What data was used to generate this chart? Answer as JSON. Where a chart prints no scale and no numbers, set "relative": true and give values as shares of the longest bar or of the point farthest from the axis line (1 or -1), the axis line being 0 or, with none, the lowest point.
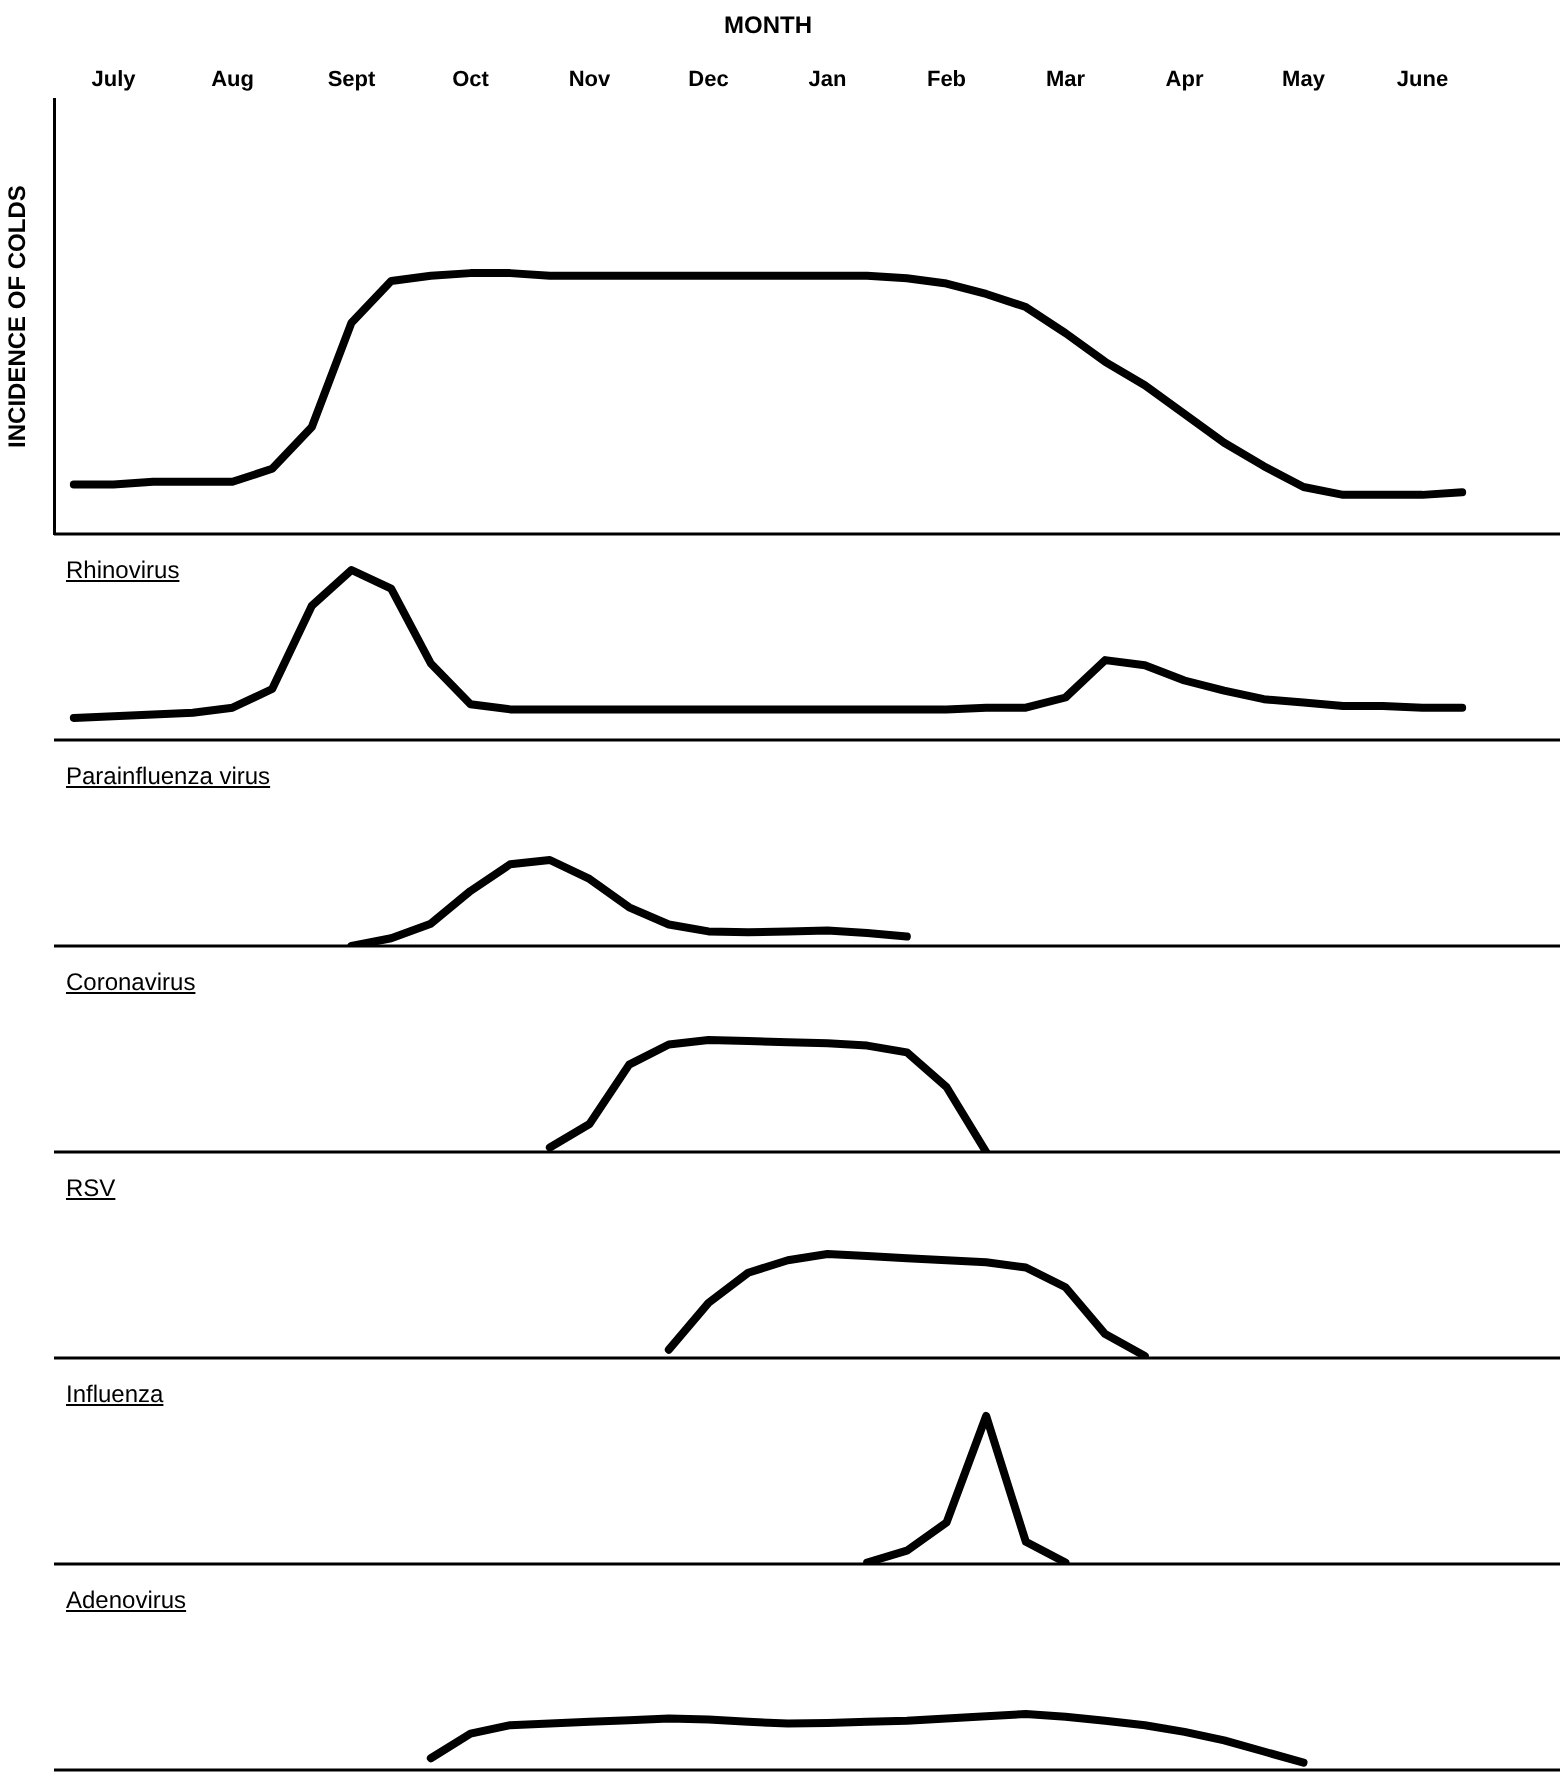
{
  "chart_data": [
    {
      "type": "line",
      "xlabel": "MONTH",
      "ylabel": "INCIDENCE OF COLDS",
      "relative": true,
      "tick_labels": "x",
      "categories": [
        null,
        "July",
        null,
        null,
        "Aug",
        null,
        null,
        "Sept",
        null,
        null,
        "Oct",
        null,
        null,
        "Nov",
        null,
        null,
        "Dec",
        null,
        null,
        "Jan",
        null,
        null,
        "Feb",
        null,
        null,
        "Mar",
        null,
        null,
        "Apr",
        null,
        null,
        "May",
        null,
        null,
        "June",
        null
      ],
      "series": [
        {
          "color": "#000000",
          "values": [
            0.19,
            0.19,
            0.2,
            0.2,
            0.2,
            0.25,
            0.41,
            0.81,
            0.97,
            0.99,
            1,
            1,
            0.99,
            0.99,
            0.99,
            0.99,
            0.99,
            0.99,
            0.99,
            0.99,
            0.99,
            0.98,
            0.96,
            0.92,
            0.87,
            0.77,
            0.66,
            0.57,
            0.46,
            0.35,
            0.26,
            0.18,
            0.15,
            0.15,
            0.15,
            0.16
          ]
        }
      ]
    },
    {
      "type": "line",
      "title": "Rhinovirus",
      "relative": true,
      "tick_labels": false,
      "categories": [
        null,
        null,
        null,
        null,
        null,
        null,
        null,
        null,
        null,
        null,
        null,
        null,
        null,
        null,
        null,
        null,
        null,
        null,
        null,
        null,
        null,
        null,
        null,
        null,
        null,
        null,
        null,
        null,
        null,
        null,
        null,
        null,
        null,
        null,
        null,
        null
      ],
      "series": [
        {
          "color": "#000000",
          "values": [
            0.13,
            0.14,
            0.15,
            0.16,
            0.19,
            0.3,
            0.79,
            1,
            0.89,
            0.45,
            0.21,
            0.18,
            0.18,
            0.18,
            0.18,
            0.18,
            0.18,
            0.18,
            0.18,
            0.18,
            0.18,
            0.18,
            0.18,
            0.19,
            0.19,
            0.25,
            0.47,
            0.44,
            0.35,
            0.29,
            0.24,
            0.22,
            0.2,
            0.2,
            0.19,
            0.19
          ]
        }
      ]
    },
    {
      "type": "line",
      "title": "Parainfluenza virus",
      "relative": true,
      "tick_labels": false,
      "categories": [
        null,
        null,
        null,
        null,
        null,
        null,
        null,
        null,
        null,
        null,
        null,
        null,
        null,
        null,
        null,
        null,
        null,
        null,
        null,
        null,
        null,
        null,
        null,
        null,
        null,
        null,
        null,
        null,
        null,
        null,
        null,
        null,
        null,
        null,
        null,
        null
      ],
      "series": [
        {
          "color": "#000000",
          "values": [
            null,
            null,
            null,
            null,
            null,
            null,
            null,
            0,
            0.09,
            0.26,
            0.64,
            0.95,
            1,
            0.78,
            0.45,
            0.25,
            0.17,
            0.16,
            0.17,
            0.18,
            0.15,
            0.11,
            null,
            null,
            null,
            null,
            null,
            null,
            null,
            null,
            null,
            null,
            null,
            null,
            null,
            null
          ]
        }
      ]
    },
    {
      "type": "line",
      "title": "Coronavirus",
      "relative": true,
      "tick_labels": false,
      "categories": [
        null,
        null,
        null,
        null,
        null,
        null,
        null,
        null,
        null,
        null,
        null,
        null,
        null,
        null,
        null,
        null,
        null,
        null,
        null,
        null,
        null,
        null,
        null,
        null,
        null,
        null,
        null,
        null,
        null,
        null,
        null,
        null,
        null,
        null,
        null,
        null
      ],
      "series": [
        {
          "color": "#000000",
          "values": [
            null,
            null,
            null,
            null,
            null,
            null,
            null,
            null,
            null,
            null,
            null,
            null,
            0.04,
            0.25,
            0.78,
            0.96,
            1,
            0.99,
            0.98,
            0.97,
            0.95,
            0.89,
            0.58,
            0,
            null,
            null,
            null,
            null,
            null,
            null,
            null,
            null,
            null,
            null,
            null,
            null
          ]
        }
      ]
    },
    {
      "type": "line",
      "title": "RSV",
      "relative": true,
      "tick_labels": false,
      "categories": [
        null,
        null,
        null,
        null,
        null,
        null,
        null,
        null,
        null,
        null,
        null,
        null,
        null,
        null,
        null,
        null,
        null,
        null,
        null,
        null,
        null,
        null,
        null,
        null,
        null,
        null,
        null,
        null,
        null,
        null,
        null,
        null,
        null,
        null,
        null,
        null
      ],
      "series": [
        {
          "color": "#000000",
          "values": [
            null,
            null,
            null,
            null,
            null,
            null,
            null,
            null,
            null,
            null,
            null,
            null,
            null,
            null,
            null,
            0.08,
            0.53,
            0.82,
            0.94,
            1,
            0.98,
            0.96,
            0.94,
            0.92,
            0.87,
            0.68,
            0.23,
            0.02,
            null,
            null,
            null,
            null,
            null,
            null,
            null,
            null
          ]
        }
      ]
    },
    {
      "type": "line",
      "title": "Influenza",
      "relative": true,
      "tick_labels": false,
      "categories": [
        null,
        null,
        null,
        null,
        null,
        null,
        null,
        null,
        null,
        null,
        null,
        null,
        null,
        null,
        null,
        null,
        null,
        null,
        null,
        null,
        null,
        null,
        null,
        null,
        null,
        null,
        null,
        null,
        null,
        null,
        null,
        null,
        null,
        null,
        null,
        null
      ],
      "series": [
        {
          "color": "#000000",
          "values": [
            null,
            null,
            null,
            null,
            null,
            null,
            null,
            null,
            null,
            null,
            null,
            null,
            null,
            null,
            null,
            null,
            null,
            null,
            null,
            null,
            0.01,
            0.09,
            0.28,
            1,
            0.15,
            0.01,
            null,
            null,
            null,
            null,
            null,
            null,
            null,
            null,
            null,
            null
          ]
        }
      ]
    },
    {
      "type": "line",
      "title": "Adenovirus",
      "relative": true,
      "tick_labels": false,
      "categories": [
        null,
        null,
        null,
        null,
        null,
        null,
        null,
        null,
        null,
        null,
        null,
        null,
        null,
        null,
        null,
        null,
        null,
        null,
        null,
        null,
        null,
        null,
        null,
        null,
        null,
        null,
        null,
        null,
        null,
        null,
        null,
        null,
        null,
        null,
        null,
        null
      ],
      "series": [
        {
          "color": "#000000",
          "values": [
            null,
            null,
            null,
            null,
            null,
            null,
            null,
            null,
            null,
            0.21,
            0.65,
            0.8,
            0.83,
            0.86,
            0.89,
            0.92,
            0.9,
            0.86,
            0.83,
            0.84,
            0.86,
            0.88,
            0.92,
            0.96,
            1,
            0.95,
            0.88,
            0.8,
            0.68,
            0.53,
            0.33,
            0.13,
            null,
            null,
            null,
            null
          ]
        }
      ]
    }
  ]
}
